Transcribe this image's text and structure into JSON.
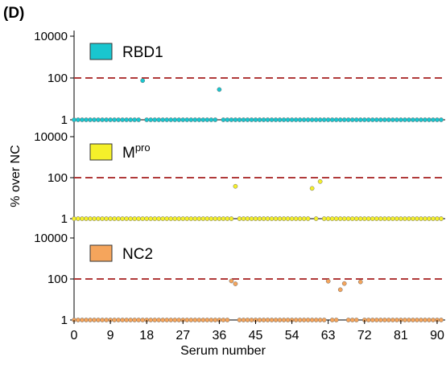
{
  "panel_label": "(D)",
  "ylabel": "% over NC",
  "xlabel": "Serum number",
  "x_ticks": [
    0,
    9,
    18,
    27,
    36,
    45,
    54,
    63,
    72,
    81,
    90
  ],
  "chart_data": {
    "type": "scatter",
    "layout": "three vertically stacked panels sharing x axis",
    "x": {
      "label": "Serum number",
      "range": [
        0,
        92
      ],
      "ticks": [
        0,
        9,
        18,
        27,
        36,
        45,
        54,
        63,
        72,
        81,
        90
      ]
    },
    "y": {
      "label": "% over NC",
      "scale": "log",
      "range": [
        1,
        10000
      ],
      "ticks": [
        "1",
        "100",
        "10000"
      ]
    },
    "threshold_line": {
      "y": 100,
      "style": "dashed",
      "color": "#b03a3a"
    },
    "panels": [
      {
        "legend": {
          "prefix": "RBD1",
          "sup": ""
        },
        "color": "#19c6cf",
        "baseline": 1,
        "n": 92,
        "outliers": [
          {
            "x": 17,
            "y": 75
          },
          {
            "x": 36,
            "y": 28
          }
        ]
      },
      {
        "legend": {
          "prefix": "M",
          "sup": "pro"
        },
        "color": "#f5f02a",
        "baseline": 1,
        "n": 92,
        "outliers": [
          {
            "x": 40,
            "y": 38
          },
          {
            "x": 59,
            "y": 30
          },
          {
            "x": 61,
            "y": 65
          }
        ]
      },
      {
        "legend": {
          "prefix": "NC2",
          "sup": ""
        },
        "color": "#f5a55c",
        "baseline": 1,
        "n": 92,
        "outliers": [
          {
            "x": 39,
            "y": 80
          },
          {
            "x": 40,
            "y": 58
          },
          {
            "x": 63,
            "y": 78
          },
          {
            "x": 66,
            "y": 30
          },
          {
            "x": 67,
            "y": 60
          },
          {
            "x": 71,
            "y": 72
          }
        ]
      }
    ]
  }
}
